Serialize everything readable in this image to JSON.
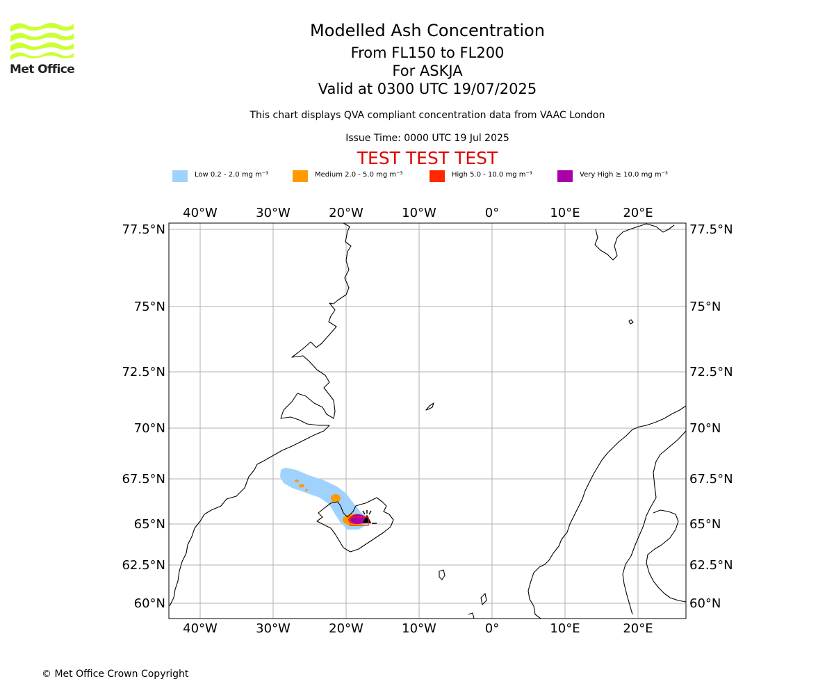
{
  "logo": {
    "text": "Met Office",
    "color": "#ccff33"
  },
  "header": {
    "title": "Modelled Ash Concentration",
    "levels": "From FL150 to FL200",
    "volcano": "For ASKJA",
    "valid": "Valid at 0300 UTC 19/07/2025",
    "description": "This chart displays QVA compliant concentration data from VAAC London",
    "issue_time": "Issue Time: 0000 UTC 19 Jul 2025",
    "test_banner": "TEST TEST TEST"
  },
  "legend": [
    {
      "label": "Low 0.2 - 2.0 mg m⁻³",
      "color": "#a0d2ff"
    },
    {
      "label": "Medium 2.0 - 5.0 mg m⁻³",
      "color": "#ff9a00"
    },
    {
      "label": "High 5.0 - 10.0 mg m⁻³",
      "color": "#ff2800"
    },
    {
      "label": "Very High ≥ 10.0 mg m⁻³",
      "color": "#aa00aa"
    }
  ],
  "map": {
    "lon_ticks": [
      "40°W",
      "30°W",
      "20°W",
      "10°W",
      "0°",
      "10°E",
      "20°E"
    ],
    "lat_ticks": [
      "77.5°N",
      "75°N",
      "72.5°N",
      "70°N",
      "67.5°N",
      "65°N",
      "62.5°N",
      "60°N"
    ],
    "grid": true
  },
  "footer": {
    "copyright": "© Met Office Crown Copyright"
  }
}
